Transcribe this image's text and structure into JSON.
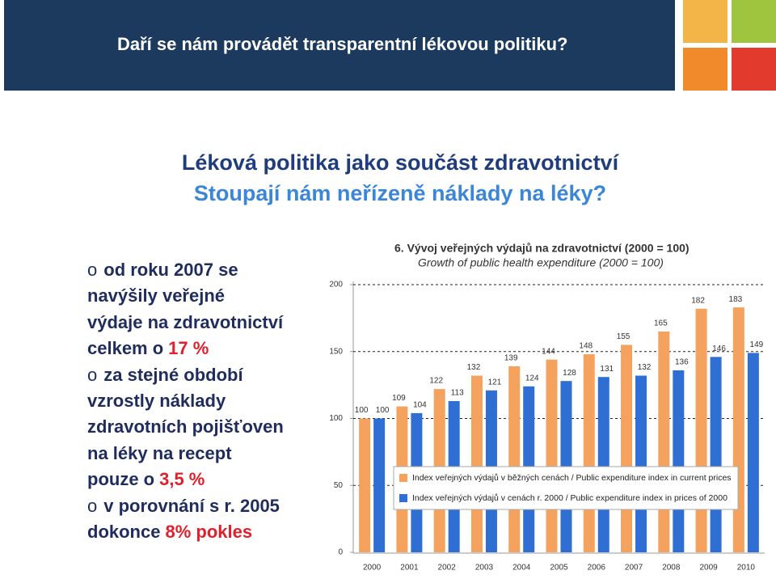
{
  "header": {
    "title": "Daří se nám provádět transparentní lékovou politiku?"
  },
  "heading": "Léková politika jako součást zdravotnictví",
  "subheading": "Stoupají nám neřízeně náklady na léky?",
  "bullet_marker": "o",
  "bullets": [
    {
      "lines": [
        "od roku 2007 se",
        "navýšily veřejné",
        "výdaje na zdravotnictví",
        "celkem o"
      ],
      "highlight": "17 %"
    },
    {
      "lines": [
        "za stejné období",
        "vzrostly náklady",
        "zdravotních pojišťoven",
        "na léky na recept",
        "pouze o"
      ],
      "highlight": "3,5 %"
    },
    {
      "lines": [
        "v porovnání s r. 2005",
        "dokonce"
      ],
      "highlight": "8% pokles"
    }
  ],
  "chart_data": {
    "type": "bar",
    "title": "6. Vývoj veřejných výdajů na zdravotnictví (2000 = 100)",
    "subtitle": "Growth of public health expenditure (2000 = 100)",
    "categories": [
      "2000",
      "2001",
      "2002",
      "2003",
      "2004",
      "2005",
      "2006",
      "2007",
      "2008",
      "2009",
      "2010"
    ],
    "series": [
      {
        "name": "Index veřejných výdajů v běžných cenách / Public expenditure index in current prices",
        "color": "#f5a25e",
        "values": [
          100,
          109,
          122,
          132,
          139,
          144,
          148,
          155,
          165,
          182,
          183
        ]
      },
      {
        "name": "Index veřejných výdajů v cenách r. 2000 / Public expenditure index in prices of 2000",
        "color": "#2f6fd3",
        "values": [
          100,
          104,
          113,
          121,
          124,
          128,
          131,
          132,
          136,
          146,
          149
        ]
      }
    ],
    "ylim": [
      0,
      200
    ],
    "yticks": [
      0,
      50,
      100,
      150,
      200
    ],
    "grid": true
  }
}
